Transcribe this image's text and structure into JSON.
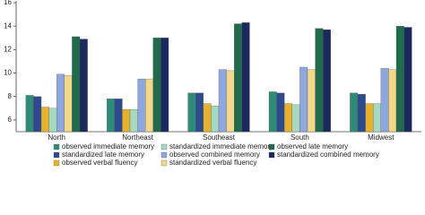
{
  "chart_data": {
    "type": "bar",
    "categories": [
      "North",
      "Northeast",
      "Southeast",
      "South",
      "Midwest"
    ],
    "ylim": [
      5,
      16
    ],
    "yticks": [
      6,
      8,
      10,
      12,
      14,
      16
    ],
    "series": [
      {
        "name": "observed immediate memory",
        "color": "#2f8a78",
        "values": [
          8.1,
          7.8,
          8.3,
          8.4,
          8.3
        ]
      },
      {
        "name": "standardized late memory",
        "color": "#2e4a8c",
        "values": [
          8.0,
          7.8,
          8.3,
          8.3,
          8.2
        ]
      },
      {
        "name": "observed verbal fluency",
        "color": "#e6b22e",
        "values": [
          7.1,
          6.9,
          7.4,
          7.4,
          7.4
        ]
      },
      {
        "name": "standardized immediate memory",
        "color": "#a6d9c0",
        "values": [
          7.0,
          6.9,
          7.2,
          7.3,
          7.4
        ]
      },
      {
        "name": "observed combined memory",
        "color": "#8ea7df",
        "values": [
          9.9,
          9.5,
          10.3,
          10.5,
          10.4
        ]
      },
      {
        "name": "standardized verbal fluency",
        "color": "#f3d88a",
        "values": [
          9.8,
          9.5,
          10.2,
          10.3,
          10.3
        ]
      },
      {
        "name": "observed late memory",
        "color": "#1f6b4c",
        "values": [
          13.1,
          13.0,
          14.2,
          13.8,
          14.0
        ]
      },
      {
        "name": "standardized combined memory",
        "color": "#1b2a5e",
        "values": [
          12.9,
          13.0,
          14.3,
          13.7,
          13.9
        ]
      }
    ]
  }
}
